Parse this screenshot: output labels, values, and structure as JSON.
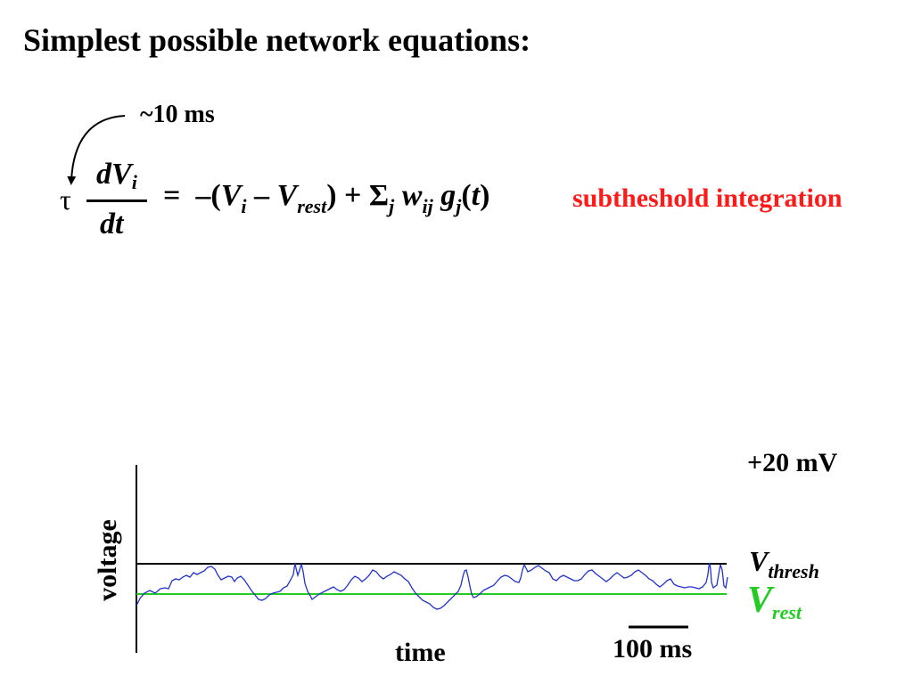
{
  "title": "Simplest possible network equations:",
  "equation": {
    "tau_annotation": "~10 ms",
    "tau": "τ",
    "lhs_numerator_var": "dV",
    "lhs_numerator_sub": "i",
    "lhs_denominator": "dt",
    "equals": "=",
    "rhs_open": "–(",
    "rhs_V": "V",
    "rhs_V_sub": "i",
    "rhs_minus": " – ",
    "rhs_Vrest": "V",
    "rhs_Vrest_sub": "rest",
    "rhs_close_plus": ") + Σ",
    "rhs_sigma_sub": "j",
    "rhs_w": " w",
    "rhs_w_sub": "ij",
    "rhs_g": " g",
    "rhs_g_sub": "j",
    "rhs_t_open": "(",
    "rhs_t": "t",
    "rhs_t_close": ")",
    "label": "subtheshold integration",
    "label_color": "#ff1a1a"
  },
  "plot": {
    "y_label": "voltage",
    "x_label": "time",
    "scale_bar_label": "100 ms",
    "top_level_label": "+20 mV",
    "thresh_label_V": "V",
    "thresh_label_sub": "thresh",
    "rest_label_V": "V",
    "rest_label_sub": "rest",
    "threshold_color": "#000000",
    "rest_color": "#22cc22",
    "trace_color": "#2233cc"
  }
}
